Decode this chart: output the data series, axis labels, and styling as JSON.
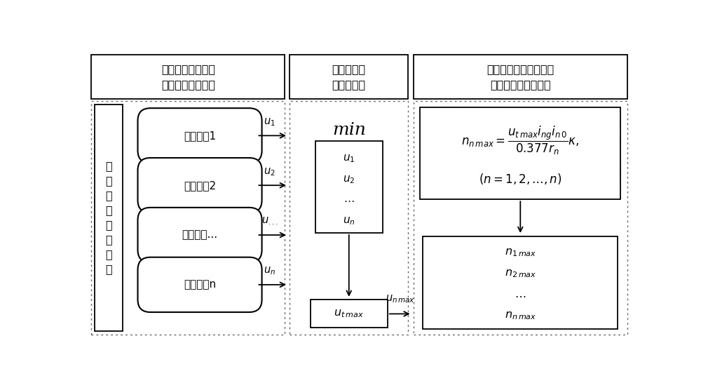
{
  "bg_color": "#ffffff",
  "fig_width": 10.0,
  "fig_height": 5.46,
  "dpi": 100,
  "title_texts": [
    "提取特定工况下异\n质车辆的最高车速",
    "最小值为队\n列速度限值",
    "由队列速度限值限制异\n质车辆动力系统转速"
  ],
  "vehicle_labels": [
    "异质车辆1",
    "异质车辆2",
    "异质车辆...",
    "异质车辆n"
  ],
  "left_label": "异\n质\n车\n辆\n跟\n驰\n队\n列",
  "arrow_labels_math": [
    "$u_1$",
    "$u_2$",
    "$u_{...}$",
    "$u_n$"
  ],
  "min_label": "min",
  "list_items_math": [
    "$u_1$",
    "$u_2$",
    "$\\cdots$",
    "$u_n$"
  ],
  "output_box_math": "$u_{t\\,max}$",
  "un_max_arrow_math": "$u_{n\\,max}$",
  "formula_math": "$n_{n\\,max}=\\dfrac{u_{t\\,max}i_{ng}i_{n\\,0}}{0.377r_n}\\kappa,$",
  "formula_sub_math": "$(n=1,2,\\ldots,n)$",
  "result_items_math": [
    "$n_{1\\,max}$",
    "$n_{2\\,max}$",
    "$\\cdots$",
    "$n_{n\\,max}$"
  ],
  "xlim": [
    0,
    10
  ],
  "ylim": [
    0,
    5.46
  ]
}
